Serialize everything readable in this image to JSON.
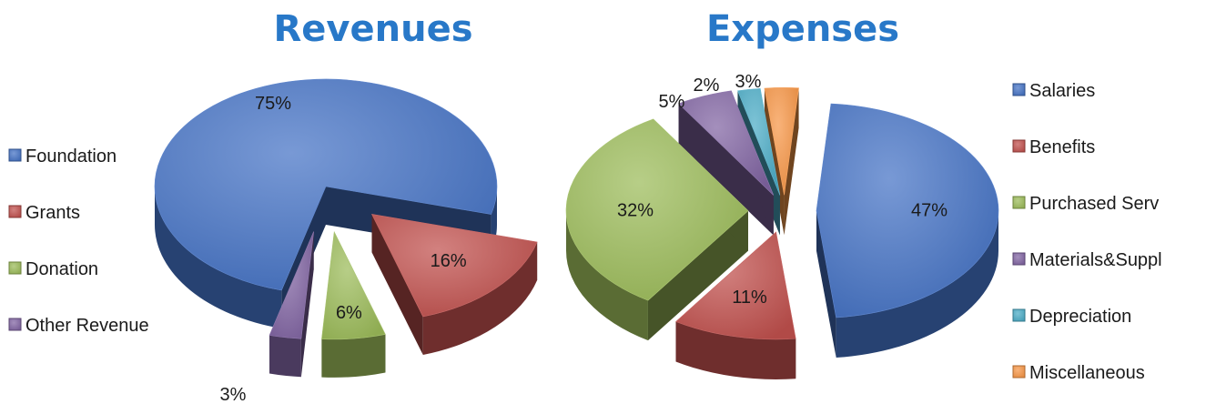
{
  "chart_data": [
    {
      "type": "pie",
      "title": "Revenues",
      "categories": [
        "Foundation",
        "Grants",
        "Donation",
        "Other Revenue"
      ],
      "values": [
        75,
        16,
        6,
        3
      ],
      "value_labels": [
        "75%",
        "16%",
        "6%",
        "3%"
      ],
      "colors": [
        "#4472c4",
        "#c0504d",
        "#9bbb59",
        "#8064a2"
      ],
      "legend_position": "left",
      "exploded": true,
      "style": "3d"
    },
    {
      "type": "pie",
      "title": "Expenses",
      "categories": [
        "Salaries",
        "Benefits",
        "Purchased Serv",
        "Materials&Suppl",
        "Depreciation",
        "Miscellaneous"
      ],
      "values": [
        47,
        11,
        32,
        5,
        2,
        3
      ],
      "value_labels": [
        "47%",
        "11%",
        "32%",
        "5%",
        "2%",
        "3%"
      ],
      "colors": [
        "#4472c4",
        "#c0504d",
        "#9bbb59",
        "#8064a2",
        "#4bacc6",
        "#f79646"
      ],
      "legend_position": "right",
      "exploded": true,
      "style": "3d"
    }
  ],
  "title_color": "#2878c8"
}
